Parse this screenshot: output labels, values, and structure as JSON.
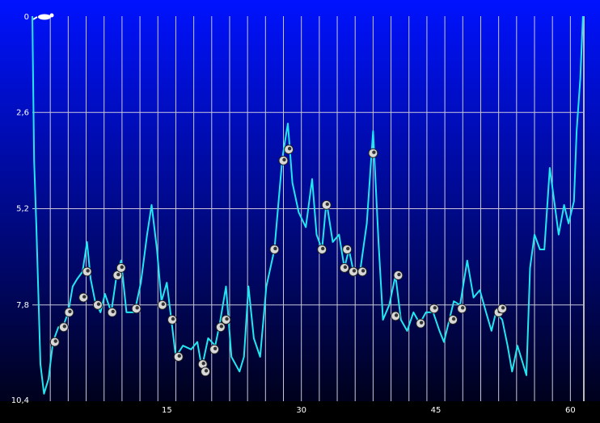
{
  "chart_data": {
    "type": "line",
    "color": "#22e6f0",
    "invert_y": true,
    "grid": true,
    "x_grid_interval": 2,
    "xlim": [
      0,
      61.5
    ],
    "ylim": [
      0,
      10.4
    ],
    "xticks": [
      15,
      30,
      45,
      60
    ],
    "yticks": [
      0,
      {
        "value": 2.6,
        "label": "2,6"
      },
      {
        "value": 5.2,
        "label": "5,2"
      },
      {
        "value": 7.8,
        "label": "7,8"
      },
      {
        "value": 10.4,
        "label": "10,4"
      }
    ],
    "x": [
      0,
      0.2,
      0.45,
      0.9,
      1.3,
      1.8,
      2.3,
      2.9,
      3.4,
      4.0,
      4.5,
      5.0,
      5.6,
      6.1,
      6.5,
      7.0,
      7.6,
      8.1,
      8.8,
      9.4,
      9.9,
      10.5,
      11.4,
      12.1,
      12.8,
      13.3,
      13.9,
      14.4,
      15.0,
      15.5,
      16.0,
      16.8,
      17.7,
      18.4,
      18.9,
      19.6,
      20.4,
      20.9,
      21.6,
      22.2,
      23.1,
      23.6,
      24.1,
      24.7,
      25.4,
      26.1,
      27.0,
      27.6,
      27.9,
      28.5,
      29.0,
      29.7,
      30.5,
      31.2,
      31.7,
      32.3,
      32.8,
      33.5,
      34.2,
      34.8,
      35.3,
      35.9,
      36.6,
      37.3,
      38.0,
      38.6,
      39.1,
      39.8,
      40.5,
      41.1,
      41.8,
      42.5,
      43.2,
      43.9,
      44.7,
      45.4,
      45.9,
      46.5,
      47.0,
      47.7,
      48.5,
      49.2,
      49.9,
      50.6,
      51.2,
      51.7,
      52.4,
      53.0,
      53.5,
      54.1,
      54.6,
      55.1,
      55.5,
      56.0,
      56.6,
      57.1,
      57.7,
      58.2,
      58.7,
      59.3,
      59.8,
      60.4,
      60.7,
      61.1,
      61.4
    ],
    "values": [
      0,
      3.9,
      5.7,
      9.4,
      10.2,
      9.8,
      8.8,
      8.4,
      8.4,
      8.0,
      7.3,
      7.1,
      6.9,
      6.1,
      7.1,
      7.7,
      8.0,
      7.5,
      8.0,
      7.0,
      6.6,
      8.0,
      8.0,
      7.2,
      5.9,
      5.1,
      6.3,
      7.7,
      7.2,
      8.2,
      9.2,
      8.9,
      9.0,
      8.8,
      9.5,
      8.7,
      8.9,
      8.3,
      7.3,
      9.2,
      9.6,
      9.2,
      7.3,
      8.7,
      9.2,
      7.3,
      6.3,
      4.6,
      3.8,
      2.9,
      4.5,
      5.3,
      5.7,
      4.4,
      5.9,
      6.3,
      5.0,
      6.1,
      5.9,
      6.8,
      6.3,
      7.0,
      6.8,
      5.6,
      3.1,
      6.1,
      8.2,
      7.8,
      7.0,
      8.2,
      8.5,
      8.0,
      8.3,
      8.0,
      8.0,
      8.5,
      8.8,
      8.2,
      7.7,
      7.8,
      6.6,
      7.6,
      7.4,
      8.0,
      8.5,
      8.0,
      8.2,
      8.9,
      9.6,
      8.9,
      9.3,
      9.7,
      6.8,
      5.9,
      6.3,
      6.3,
      4.1,
      5.0,
      5.9,
      5.1,
      5.6,
      5.0,
      3.1,
      1.7,
      0
    ],
    "markers": {
      "x": [
        2.5,
        3.5,
        4.1,
        5.7,
        6.1,
        7.3,
        8.9,
        9.5,
        9.9,
        11.6,
        14.5,
        15.6,
        16.3,
        19.0,
        19.3,
        20.3,
        21.0,
        21.6,
        27.0,
        28.0,
        28.6,
        32.3,
        32.8,
        34.8,
        35.1,
        35.8,
        36.8,
        38.0,
        40.5,
        40.8,
        43.3,
        44.8,
        46.9,
        47.9,
        52.0,
        52.4
      ],
      "y": [
        8.8,
        8.4,
        8.0,
        7.6,
        6.9,
        7.8,
        8.0,
        7.0,
        6.8,
        7.9,
        7.8,
        8.2,
        9.2,
        9.4,
        9.6,
        9.0,
        8.4,
        8.2,
        6.3,
        3.9,
        3.6,
        6.3,
        5.1,
        6.8,
        6.3,
        6.9,
        6.9,
        3.7,
        8.1,
        7.0,
        8.3,
        7.9,
        8.2,
        7.9,
        8.0,
        7.9
      ]
    }
  }
}
